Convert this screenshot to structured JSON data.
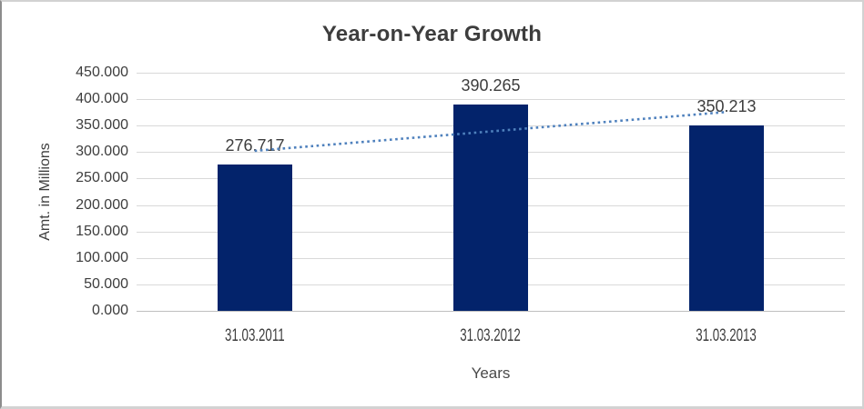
{
  "chart_data": {
    "type": "bar",
    "title": "Year-on-Year Growth",
    "xlabel": "Years",
    "ylabel": "Amt. in Millions",
    "categories": [
      "31.03.2011",
      "31.03.2012",
      "31.03.2013"
    ],
    "values": [
      276.717,
      390.265,
      350.213
    ],
    "data_labels": [
      "276.717",
      "390.265",
      "350.213"
    ],
    "y_ticks": [
      "450.000",
      "400.000",
      "350.000",
      "300.000",
      "250.000",
      "200.000",
      "150.000",
      "100.000",
      "50.000",
      "0.000"
    ],
    "ylim": [
      0,
      450
    ],
    "grid": true,
    "legend": "none",
    "trendline": {
      "type": "linear",
      "style": "dotted",
      "color": "#4f81bd"
    },
    "colors": {
      "bar": "#03236b",
      "gridline": "#d9d9d9",
      "axis_line": "#bfbfbf",
      "text": "#3d3d3d",
      "title": "#3d3d3d"
    }
  }
}
